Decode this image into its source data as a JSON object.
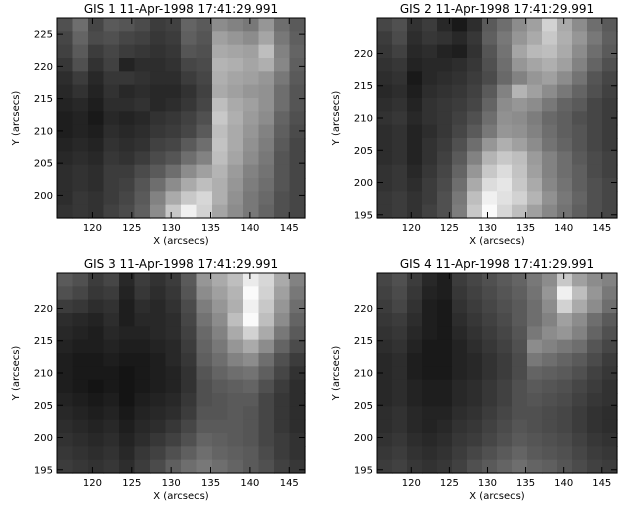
{
  "chart_data": [
    {
      "type": "heatmap",
      "title": "GIS 1 11-Apr-1998 17:41:29.991",
      "xlabel": "X (arcsecs)",
      "ylabel": "Y (arcsecs)",
      "xlim": [
        115.5,
        147
      ],
      "ylim": [
        196.5,
        227.5
      ],
      "xticks": [
        "120",
        "125",
        "130",
        "135",
        "140",
        "145"
      ],
      "yticks": [
        "200",
        "205",
        "210",
        "215",
        "220",
        "225"
      ],
      "grid": false,
      "cells": [
        [
          80,
          110,
          70,
          90,
          85,
          75,
          60,
          65,
          100,
          90,
          140,
          130,
          120,
          150,
          110,
          90
        ],
        [
          70,
          100,
          75,
          80,
          70,
          65,
          55,
          60,
          95,
          85,
          160,
          150,
          140,
          165,
          120,
          95
        ],
        [
          65,
          90,
          60,
          70,
          60,
          55,
          50,
          55,
          85,
          80,
          170,
          165,
          160,
          190,
          130,
          100
        ],
        [
          55,
          80,
          50,
          65,
          35,
          45,
          45,
          50,
          70,
          75,
          180,
          175,
          165,
          175,
          135,
          95
        ],
        [
          45,
          60,
          40,
          55,
          55,
          50,
          45,
          45,
          60,
          70,
          175,
          165,
          160,
          150,
          120,
          90
        ],
        [
          40,
          50,
          35,
          50,
          40,
          45,
          40,
          40,
          50,
          65,
          170,
          160,
          150,
          145,
          110,
          85
        ],
        [
          35,
          40,
          30,
          45,
          45,
          50,
          40,
          45,
          55,
          70,
          190,
          170,
          160,
          145,
          110,
          85
        ],
        [
          30,
          35,
          25,
          40,
          35,
          40,
          50,
          55,
          65,
          80,
          200,
          175,
          155,
          140,
          100,
          80
        ],
        [
          30,
          35,
          30,
          45,
          40,
          45,
          55,
          60,
          70,
          90,
          190,
          170,
          150,
          130,
          95,
          75
        ],
        [
          35,
          40,
          35,
          50,
          45,
          50,
          65,
          70,
          90,
          110,
          195,
          170,
          145,
          125,
          90,
          70
        ],
        [
          40,
          45,
          40,
          55,
          50,
          60,
          75,
          85,
          110,
          130,
          190,
          165,
          140,
          120,
          85,
          70
        ],
        [
          45,
          50,
          45,
          60,
          60,
          75,
          90,
          110,
          140,
          160,
          180,
          155,
          130,
          115,
          85,
          70
        ],
        [
          45,
          50,
          45,
          60,
          65,
          85,
          110,
          140,
          170,
          190,
          175,
          150,
          125,
          110,
          85,
          70
        ],
        [
          45,
          55,
          50,
          60,
          70,
          90,
          130,
          170,
          200,
          215,
          175,
          145,
          120,
          105,
          80,
          70
        ],
        [
          50,
          55,
          50,
          65,
          75,
          95,
          140,
          200,
          240,
          210,
          165,
          140,
          120,
          100,
          80,
          70
        ]
      ]
    },
    {
      "type": "heatmap",
      "title": "GIS 2 11-Apr-1998 17:41:29.991",
      "xlabel": "X (arcsecs)",
      "ylabel": "Y (arcsecs)",
      "xlim": [
        115.5,
        147
      ],
      "ylim": [
        194.5,
        225.5
      ],
      "xticks": [
        "120",
        "125",
        "130",
        "135",
        "140",
        "145"
      ],
      "yticks": [
        "195",
        "200",
        "205",
        "210",
        "215",
        "220"
      ],
      "grid": false,
      "cells": [
        [
          70,
          80,
          50,
          60,
          40,
          25,
          45,
          90,
          110,
          140,
          160,
          210,
          170,
          140,
          110,
          90
        ],
        [
          60,
          75,
          45,
          55,
          50,
          40,
          55,
          95,
          120,
          150,
          170,
          200,
          175,
          150,
          120,
          95
        ],
        [
          55,
          65,
          40,
          45,
          35,
          30,
          50,
          85,
          115,
          165,
          185,
          190,
          170,
          140,
          110,
          90
        ],
        [
          50,
          55,
          35,
          40,
          40,
          45,
          55,
          80,
          110,
          150,
          165,
          175,
          160,
          130,
          100,
          80
        ],
        [
          45,
          50,
          25,
          40,
          45,
          50,
          60,
          75,
          105,
          130,
          150,
          160,
          140,
          115,
          85,
          70
        ],
        [
          40,
          45,
          30,
          45,
          50,
          55,
          65,
          90,
          130,
          180,
          160,
          140,
          120,
          100,
          80,
          65
        ],
        [
          45,
          50,
          35,
          50,
          55,
          60,
          70,
          100,
          140,
          150,
          140,
          120,
          100,
          90,
          70,
          60
        ],
        [
          50,
          55,
          40,
          50,
          55,
          65,
          80,
          110,
          145,
          140,
          125,
          105,
          95,
          80,
          70,
          60
        ],
        [
          45,
          50,
          35,
          45,
          55,
          70,
          90,
          120,
          150,
          145,
          130,
          110,
          95,
          85,
          70,
          60
        ],
        [
          45,
          50,
          35,
          50,
          60,
          80,
          110,
          150,
          175,
          160,
          140,
          115,
          100,
          85,
          70,
          60
        ],
        [
          45,
          50,
          35,
          50,
          65,
          90,
          130,
          180,
          200,
          190,
          155,
          130,
          110,
          90,
          75,
          65
        ],
        [
          50,
          55,
          40,
          55,
          70,
          100,
          150,
          200,
          220,
          195,
          160,
          130,
          110,
          95,
          75,
          65
        ],
        [
          50,
          55,
          45,
          60,
          75,
          110,
          170,
          220,
          230,
          200,
          170,
          135,
          115,
          95,
          80,
          70
        ],
        [
          55,
          60,
          50,
          60,
          80,
          120,
          190,
          240,
          225,
          210,
          180,
          145,
          120,
          100,
          80,
          70
        ],
        [
          55,
          60,
          50,
          65,
          80,
          125,
          200,
          250,
          215,
          190,
          160,
          135,
          115,
          95,
          80,
          70
        ]
      ]
    },
    {
      "type": "heatmap",
      "title": "GIS 3 11-Apr-1998 17:41:29.991",
      "xlabel": "X (arcsecs)",
      "ylabel": "Y (arcsecs)",
      "xlim": [
        115.5,
        147
      ],
      "ylim": [
        194.5,
        225.5
      ],
      "xticks": [
        "120",
        "125",
        "130",
        "135",
        "140",
        "145"
      ],
      "yticks": [
        "195",
        "200",
        "205",
        "210",
        "215",
        "220"
      ],
      "grid": false,
      "cells": [
        [
          90,
          80,
          60,
          70,
          40,
          60,
          50,
          60,
          90,
          150,
          170,
          190,
          235,
          215,
          170,
          130
        ],
        [
          80,
          70,
          55,
          60,
          35,
          55,
          45,
          55,
          85,
          140,
          160,
          180,
          250,
          210,
          160,
          120
        ],
        [
          60,
          55,
          45,
          50,
          30,
          45,
          40,
          50,
          75,
          125,
          150,
          175,
          240,
          200,
          150,
          110
        ],
        [
          45,
          40,
          35,
          45,
          30,
          40,
          40,
          45,
          70,
          115,
          140,
          190,
          250,
          190,
          140,
          100
        ],
        [
          40,
          35,
          30,
          40,
          35,
          35,
          40,
          45,
          65,
          105,
          130,
          170,
          210,
          170,
          120,
          90
        ],
        [
          35,
          30,
          30,
          35,
          30,
          30,
          35,
          40,
          60,
          100,
          120,
          150,
          170,
          140,
          100,
          75
        ],
        [
          30,
          25,
          25,
          30,
          25,
          25,
          30,
          40,
          55,
          95,
          110,
          130,
          140,
          110,
          80,
          60
        ],
        [
          30,
          25,
          25,
          25,
          20,
          25,
          30,
          35,
          50,
          85,
          100,
          110,
          115,
          95,
          70,
          50
        ],
        [
          30,
          25,
          20,
          25,
          20,
          25,
          30,
          35,
          50,
          80,
          90,
          95,
          100,
          80,
          60,
          45
        ],
        [
          35,
          30,
          25,
          30,
          20,
          30,
          35,
          40,
          55,
          80,
          85,
          90,
          90,
          70,
          55,
          45
        ],
        [
          40,
          35,
          30,
          35,
          25,
          35,
          40,
          45,
          60,
          85,
          85,
          90,
          85,
          70,
          55,
          45
        ],
        [
          45,
          40,
          35,
          40,
          30,
          40,
          45,
          55,
          70,
          90,
          90,
          90,
          85,
          70,
          55,
          45
        ],
        [
          50,
          45,
          40,
          45,
          35,
          45,
          55,
          65,
          80,
          100,
          95,
          90,
          85,
          70,
          60,
          50
        ],
        [
          55,
          50,
          45,
          50,
          40,
          55,
          65,
          80,
          95,
          110,
          100,
          95,
          90,
          75,
          60,
          50
        ],
        [
          60,
          55,
          50,
          55,
          45,
          60,
          75,
          95,
          110,
          120,
          110,
          100,
          90,
          80,
          65,
          55
        ]
      ]
    },
    {
      "type": "heatmap",
      "title": "GIS 4 11-Apr-1998 17:41:29.991",
      "xlabel": "X (arcsecs)",
      "ylabel": "Y (arcsecs)",
      "xlim": [
        115.5,
        147
      ],
      "ylim": [
        194.5,
        225.5
      ],
      "xticks": [
        "120",
        "125",
        "130",
        "135",
        "140",
        "145"
      ],
      "yticks": [
        "195",
        "200",
        "205",
        "210",
        "215",
        "220"
      ],
      "grid": false,
      "cells": [
        [
          70,
          80,
          60,
          40,
          30,
          60,
          70,
          80,
          90,
          100,
          120,
          140,
          200,
          160,
          140,
          130
        ],
        [
          65,
          75,
          55,
          35,
          30,
          55,
          65,
          75,
          85,
          95,
          115,
          150,
          240,
          190,
          150,
          120
        ],
        [
          60,
          70,
          50,
          30,
          25,
          50,
          60,
          70,
          80,
          90,
          110,
          140,
          210,
          170,
          140,
          110
        ],
        [
          55,
          60,
          45,
          30,
          25,
          45,
          55,
          65,
          75,
          90,
          110,
          130,
          160,
          140,
          110,
          90
        ],
        [
          50,
          55,
          40,
          30,
          25,
          40,
          50,
          60,
          70,
          85,
          120,
          140,
          150,
          130,
          100,
          80
        ],
        [
          45,
          50,
          35,
          25,
          25,
          35,
          45,
          55,
          65,
          80,
          140,
          130,
          120,
          110,
          85,
          70
        ],
        [
          40,
          45,
          30,
          25,
          25,
          35,
          40,
          50,
          60,
          75,
          120,
          110,
          100,
          90,
          75,
          60
        ],
        [
          40,
          45,
          30,
          25,
          25,
          35,
          40,
          50,
          60,
          75,
          100,
          95,
          90,
          80,
          65,
          55
        ],
        [
          40,
          45,
          35,
          30,
          30,
          40,
          45,
          55,
          65,
          80,
          90,
          85,
          80,
          70,
          60,
          50
        ],
        [
          40,
          45,
          35,
          30,
          30,
          40,
          45,
          55,
          65,
          80,
          85,
          80,
          75,
          65,
          55,
          50
        ],
        [
          45,
          50,
          40,
          35,
          35,
          45,
          50,
          60,
          70,
          80,
          80,
          75,
          70,
          60,
          50,
          45
        ],
        [
          45,
          50,
          40,
          35,
          40,
          50,
          55,
          65,
          75,
          85,
          80,
          75,
          70,
          60,
          50,
          45
        ],
        [
          50,
          55,
          45,
          40,
          45,
          55,
          60,
          70,
          80,
          90,
          85,
          80,
          75,
          65,
          55,
          50
        ],
        [
          55,
          60,
          50,
          45,
          50,
          60,
          70,
          80,
          90,
          100,
          90,
          85,
          80,
          70,
          60,
          55
        ],
        [
          60,
          65,
          55,
          50,
          55,
          65,
          80,
          90,
          100,
          110,
          100,
          95,
          85,
          75,
          65,
          60
        ]
      ]
    }
  ]
}
